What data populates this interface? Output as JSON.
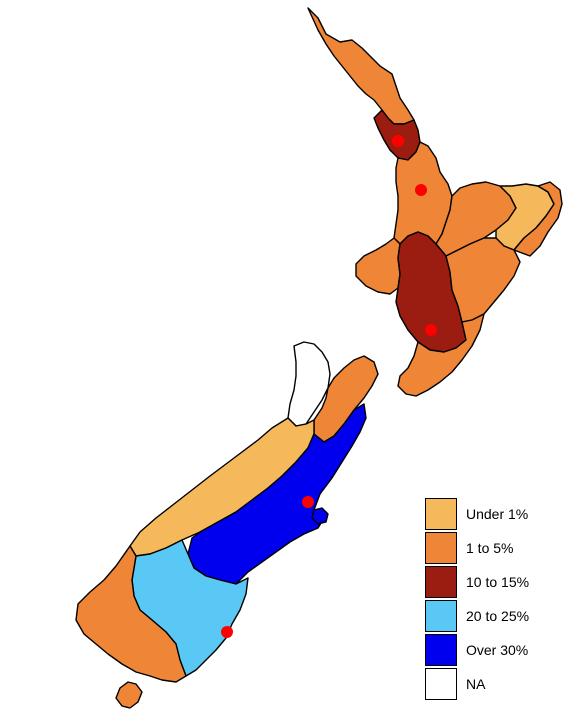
{
  "map": {
    "colors": {
      "under_1": "#f5b95c",
      "1_to_5": "#ef8536",
      "10_to_15": "#9b1c10",
      "20_to_25": "#59c8f5",
      "over_30": "#0000ee",
      "na": "#ffffff",
      "marker": "#ff0000"
    }
  },
  "legend": {
    "items": [
      {
        "label": "Under 1%",
        "color": "#f5b95c"
      },
      {
        "label": "1 to 5%",
        "color": "#ef8536"
      },
      {
        "label": "10 to 15%",
        "color": "#9b1c10"
      },
      {
        "label": "20 to 25%",
        "color": "#59c8f5"
      },
      {
        "label": "Over 30%",
        "color": "#0000ee"
      },
      {
        "label": "NA",
        "color": "#ffffff"
      }
    ]
  }
}
